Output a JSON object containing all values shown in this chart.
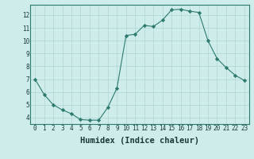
{
  "x": [
    0,
    1,
    2,
    3,
    4,
    5,
    6,
    7,
    8,
    9,
    10,
    11,
    12,
    13,
    14,
    15,
    16,
    17,
    18,
    19,
    20,
    21,
    22,
    23
  ],
  "y": [
    7.0,
    5.8,
    5.0,
    4.6,
    4.3,
    3.85,
    3.8,
    3.8,
    4.8,
    6.3,
    10.4,
    10.5,
    11.2,
    11.1,
    11.6,
    12.4,
    12.45,
    12.3,
    12.2,
    10.0,
    8.6,
    7.9,
    7.3,
    6.9
  ],
  "line_color": "#2d7a6e",
  "marker": "D",
  "marker_size": 2.2,
  "bg_color": "#ceecea",
  "grid_color": "#aed6d2",
  "xlabel": "Humidex (Indice chaleur)",
  "ylim": [
    3.5,
    12.8
  ],
  "xlim": [
    -0.5,
    23.5
  ],
  "yticks": [
    4,
    5,
    6,
    7,
    8,
    9,
    10,
    11,
    12
  ],
  "xticks": [
    0,
    1,
    2,
    3,
    4,
    5,
    6,
    7,
    8,
    9,
    10,
    11,
    12,
    13,
    14,
    15,
    16,
    17,
    18,
    19,
    20,
    21,
    22,
    23
  ],
  "tick_label_size": 5.5,
  "xlabel_size": 7.5,
  "spine_color": "#2d7a6e"
}
